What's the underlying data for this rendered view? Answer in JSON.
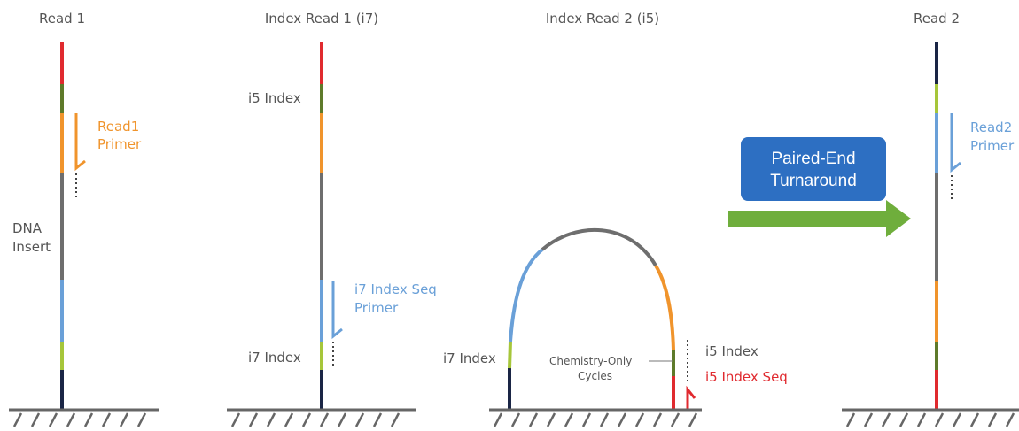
{
  "colors": {
    "red": "#e02a2f",
    "olive": "#5e7a2a",
    "orange": "#f0942c",
    "gray": "#6e6e6e",
    "blue": "#6aa0d8",
    "lime": "#a6c63a",
    "navy": "#1a2545",
    "ground": "#666666",
    "button": "#2d6fc2",
    "arrow": "#6fae3c",
    "label": "#555555"
  },
  "panels": {
    "read1": {
      "title": "Read 1",
      "primer_line1": "Read1",
      "primer_line2": "Primer",
      "insert_line1": "DNA",
      "insert_line2": "Insert"
    },
    "index_read1": {
      "title": "Index Read 1 (i7)",
      "i5_label": "i5 Index",
      "primer_line1": "i7 Index Seq",
      "primer_line2": "Primer",
      "i7_label": "i7 Index"
    },
    "index_read2": {
      "title": "Index Read 2 (i5)",
      "i7_label": "i7 Index",
      "chem_line1": "Chemistry-Only",
      "chem_line2": "Cycles",
      "i5_label": "i5 Index",
      "i5_seq_label": "i5 Index Seq"
    },
    "turnaround": {
      "line1": "Paired-End",
      "line2": "Turnaround"
    },
    "read2": {
      "title": "Read 2",
      "primer_line1": "Read2",
      "primer_line2": "Primer"
    }
  }
}
